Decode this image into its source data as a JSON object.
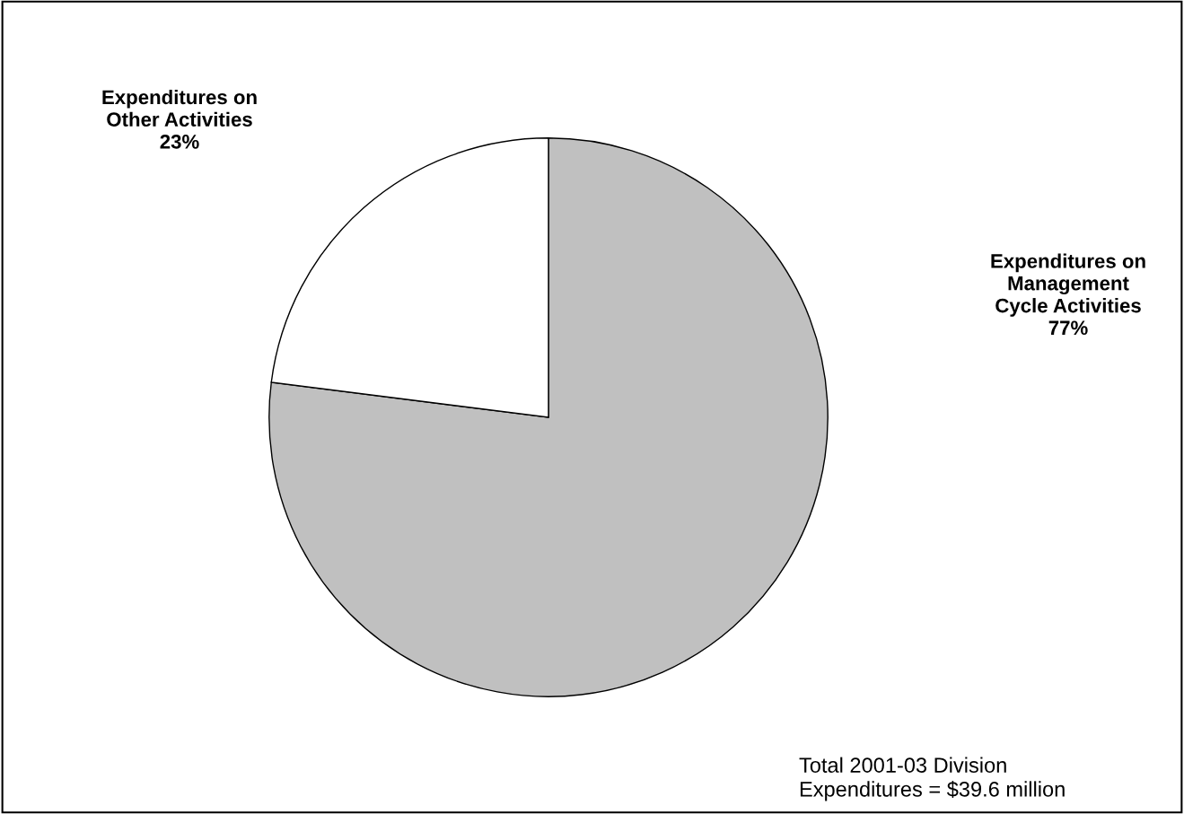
{
  "chart_data": {
    "type": "pie",
    "categories": [
      "Expenditures on\nManagement\nCycle Activities",
      "Expenditures on\nOther Activities"
    ],
    "values": [
      77,
      23
    ],
    "colors": [
      "#c0c0c0",
      "#ffffff"
    ],
    "value_labels": [
      "77%",
      "23%"
    ],
    "annotations": [
      "Total 2001-03 Division\nExpenditures = $39.6 million"
    ]
  }
}
